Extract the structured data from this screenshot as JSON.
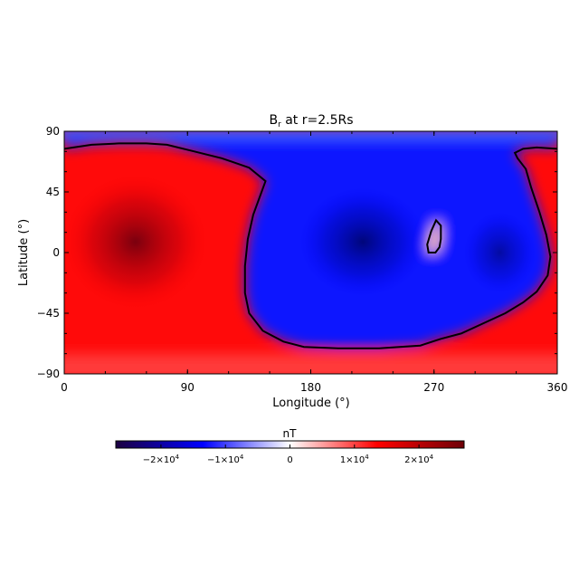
{
  "chart_data": {
    "type": "heatmap",
    "title": "B",
    "title_subscript": "r",
    "title_suffix": " at r=2.5Rs",
    "xlabel": "Longitude (°)",
    "ylabel": "Latitude (°)",
    "xlim": [
      0,
      360
    ],
    "ylim": [
      -90,
      90
    ],
    "x_ticks": [
      0,
      90,
      180,
      270,
      360
    ],
    "y_ticks": [
      90,
      45,
      0,
      -45,
      -90
    ],
    "y_tick_labels": [
      "90",
      "45",
      "0",
      "−45",
      "−90"
    ],
    "colorbar": {
      "label": "nT",
      "range": [
        -27000,
        27000
      ],
      "ticks": [
        -20000,
        -10000,
        0,
        10000,
        20000
      ],
      "tick_labels": [
        {
          "pre": "−2×10",
          "exp": "4"
        },
        {
          "pre": "−1×10",
          "exp": "4"
        },
        {
          "pre": "0",
          "exp": ""
        },
        {
          "pre": "1×10",
          "exp": "4"
        },
        {
          "pre": "2×10",
          "exp": "4"
        }
      ],
      "colors": [
        "#1c0040",
        "#0000ff",
        "#ffffff",
        "#ff0000",
        "#6e0008"
      ]
    },
    "field_centers": [
      {
        "lon": 52,
        "lat": 8,
        "value": 27000
      },
      {
        "lon": 218,
        "lat": 8,
        "value": -24000
      },
      {
        "lon": 318,
        "lat": 0,
        "value": -20000
      },
      {
        "lon": 360,
        "lat": -40,
        "value": 9000
      },
      {
        "lon": 272,
        "lat": 8,
        "value": 4000
      }
    ],
    "neutral_line_main": [
      [
        0,
        77
      ],
      [
        20,
        80
      ],
      [
        40,
        81
      ],
      [
        60,
        81
      ],
      [
        75,
        80
      ],
      [
        95,
        75
      ],
      [
        115,
        70
      ],
      [
        135,
        63
      ],
      [
        147,
        53
      ],
      [
        143,
        42
      ],
      [
        138,
        28
      ],
      [
        134,
        10
      ],
      [
        132,
        -10
      ],
      [
        132,
        -30
      ],
      [
        135,
        -45
      ],
      [
        145,
        -58
      ],
      [
        160,
        -66
      ],
      [
        175,
        -70
      ],
      [
        200,
        -71
      ],
      [
        230,
        -71
      ],
      [
        260,
        -69
      ],
      [
        275,
        -64
      ],
      [
        290,
        -60
      ],
      [
        305,
        -53
      ],
      [
        322,
        -45
      ],
      [
        335,
        -37
      ],
      [
        345,
        -29
      ],
      [
        353,
        -17
      ],
      [
        355,
        -3
      ],
      [
        352,
        13
      ],
      [
        347,
        30
      ],
      [
        341,
        48
      ],
      [
        337,
        62
      ],
      [
        331,
        70
      ],
      [
        329,
        74
      ],
      [
        335,
        77
      ],
      [
        345,
        78
      ],
      [
        360,
        77
      ]
    ],
    "neutral_line_island": [
      [
        271.5,
        24
      ],
      [
        275,
        20
      ],
      [
        275,
        10
      ],
      [
        274,
        4
      ],
      [
        271,
        0
      ],
      [
        266,
        0
      ],
      [
        265,
        6
      ],
      [
        268,
        16
      ],
      [
        271.5,
        24
      ]
    ]
  }
}
